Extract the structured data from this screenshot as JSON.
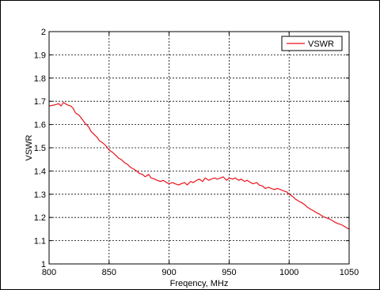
{
  "chart_data": {
    "type": "line",
    "title": "",
    "xlabel": "Freqency, MHz",
    "ylabel": "VSWR",
    "xlim": [
      800,
      1050
    ],
    "ylim": [
      1,
      2
    ],
    "x_ticks": [
      "800",
      "850",
      "900",
      "950",
      "1000",
      "1050"
    ],
    "y_ticks": [
      "1",
      "1.1",
      "1.2",
      "1.3",
      "1.4",
      "1.5",
      "1.6",
      "1.7",
      "1.8",
      "1.9",
      "2"
    ],
    "grid": true,
    "legend_position": "top-right",
    "series": [
      {
        "name": "VSWR",
        "color": "#e8131b",
        "x": [
          800,
          805,
          808,
          810,
          812,
          815,
          818,
          820,
          822,
          825,
          828,
          830,
          833,
          835,
          838,
          840,
          842,
          845,
          848,
          850,
          853,
          855,
          858,
          860,
          863,
          865,
          868,
          870,
          873,
          875,
          878,
          880,
          883,
          885,
          888,
          890,
          893,
          895,
          898,
          900,
          903,
          905,
          908,
          910,
          913,
          915,
          918,
          920,
          923,
          925,
          928,
          930,
          933,
          935,
          938,
          940,
          943,
          945,
          948,
          950,
          953,
          955,
          958,
          960,
          963,
          965,
          968,
          970,
          973,
          975,
          978,
          980,
          983,
          985,
          988,
          990,
          993,
          995,
          998,
          1000,
          1003,
          1005,
          1008,
          1010,
          1013,
          1015,
          1018,
          1020,
          1023,
          1025,
          1028,
          1030,
          1033,
          1035,
          1038,
          1040,
          1043,
          1045,
          1048,
          1050
        ],
        "y": [
          1.68,
          1.685,
          1.69,
          1.68,
          1.695,
          1.685,
          1.68,
          1.67,
          1.65,
          1.64,
          1.62,
          1.605,
          1.59,
          1.57,
          1.555,
          1.545,
          1.53,
          1.52,
          1.505,
          1.49,
          1.48,
          1.47,
          1.455,
          1.45,
          1.435,
          1.43,
          1.415,
          1.41,
          1.4,
          1.39,
          1.385,
          1.375,
          1.385,
          1.37,
          1.365,
          1.36,
          1.355,
          1.36,
          1.35,
          1.345,
          1.35,
          1.345,
          1.34,
          1.345,
          1.35,
          1.34,
          1.355,
          1.35,
          1.36,
          1.365,
          1.355,
          1.37,
          1.36,
          1.365,
          1.37,
          1.365,
          1.37,
          1.375,
          1.36,
          1.37,
          1.365,
          1.37,
          1.36,
          1.365,
          1.355,
          1.36,
          1.35,
          1.345,
          1.35,
          1.34,
          1.335,
          1.325,
          1.33,
          1.325,
          1.32,
          1.325,
          1.32,
          1.315,
          1.31,
          1.3,
          1.29,
          1.28,
          1.27,
          1.265,
          1.255,
          1.245,
          1.235,
          1.23,
          1.22,
          1.215,
          1.205,
          1.2,
          1.195,
          1.19,
          1.18,
          1.175,
          1.17,
          1.165,
          1.155,
          1.15
        ]
      }
    ]
  }
}
